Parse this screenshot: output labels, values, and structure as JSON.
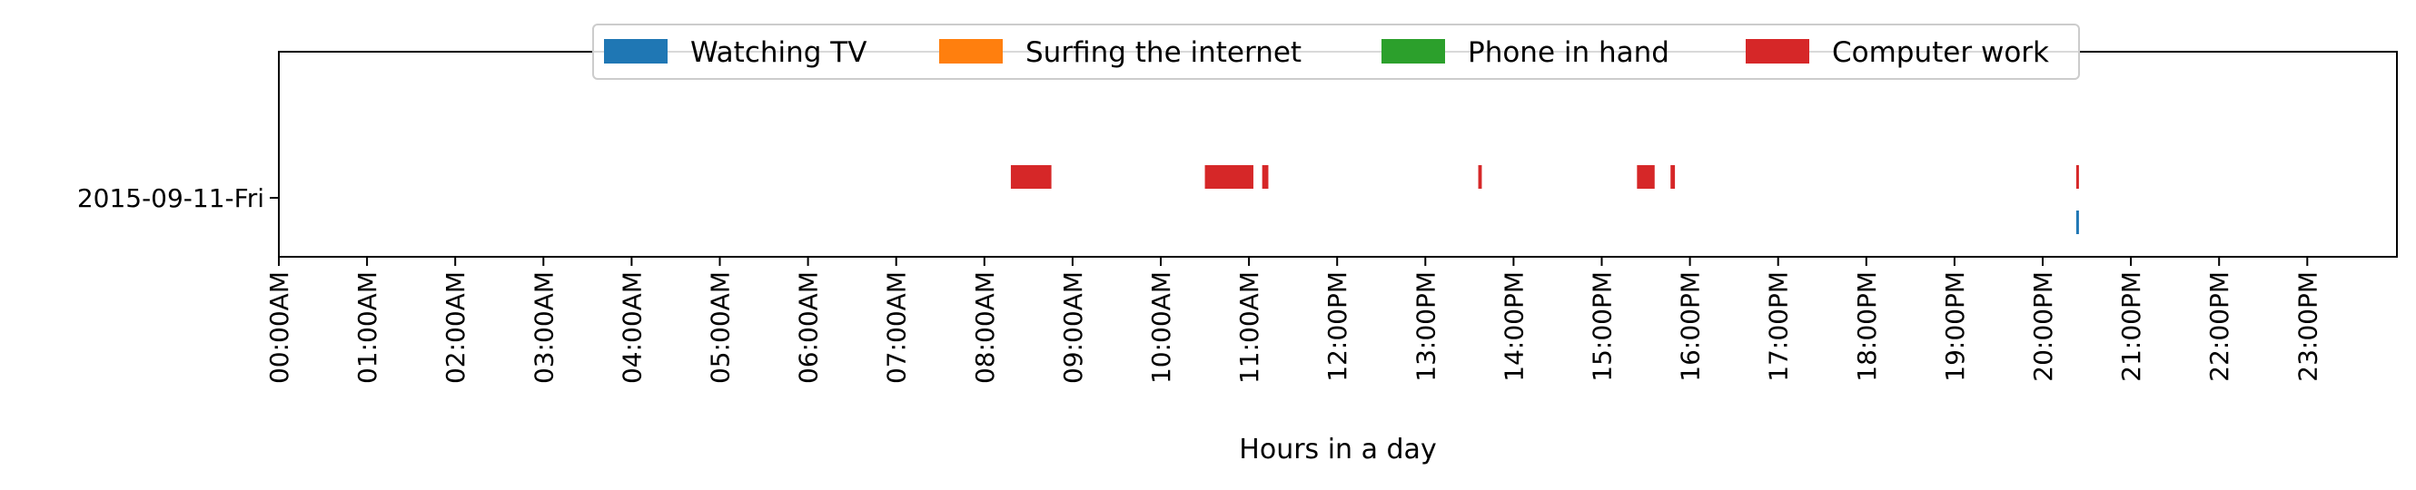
{
  "chart_data": {
    "type": "timeline",
    "xlabel": "Hours in a day",
    "xlim": [
      0,
      24
    ],
    "x_ticks": [
      "00:00AM",
      "01:00AM",
      "02:00AM",
      "03:00AM",
      "04:00AM",
      "05:00AM",
      "06:00AM",
      "07:00AM",
      "08:00AM",
      "09:00AM",
      "10:00AM",
      "11:00AM",
      "12:00PM",
      "13:00PM",
      "14:00PM",
      "15:00PM",
      "16:00PM",
      "17:00PM",
      "18:00PM",
      "19:00PM",
      "20:00PM",
      "21:00PM",
      "22:00PM",
      "23:00PM"
    ],
    "categories": [
      "2015-09-11-Fri"
    ],
    "legend_position": "top-center",
    "series": [
      {
        "name": "Watching TV",
        "color": "#1f77b4",
        "segments": [
          [
            20.38,
            20.41
          ]
        ]
      },
      {
        "name": "Surfing the internet",
        "color": "#ff7f0e",
        "segments": []
      },
      {
        "name": "Phone in hand",
        "color": "#2ca02c",
        "segments": []
      },
      {
        "name": "Computer work",
        "color": "#d62728",
        "segments": [
          [
            8.3,
            8.76
          ],
          [
            10.5,
            11.05
          ],
          [
            11.15,
            11.22
          ],
          [
            13.6,
            13.64
          ],
          [
            15.4,
            15.6
          ],
          [
            15.78,
            15.83
          ],
          [
            20.38,
            20.41
          ]
        ]
      }
    ]
  }
}
